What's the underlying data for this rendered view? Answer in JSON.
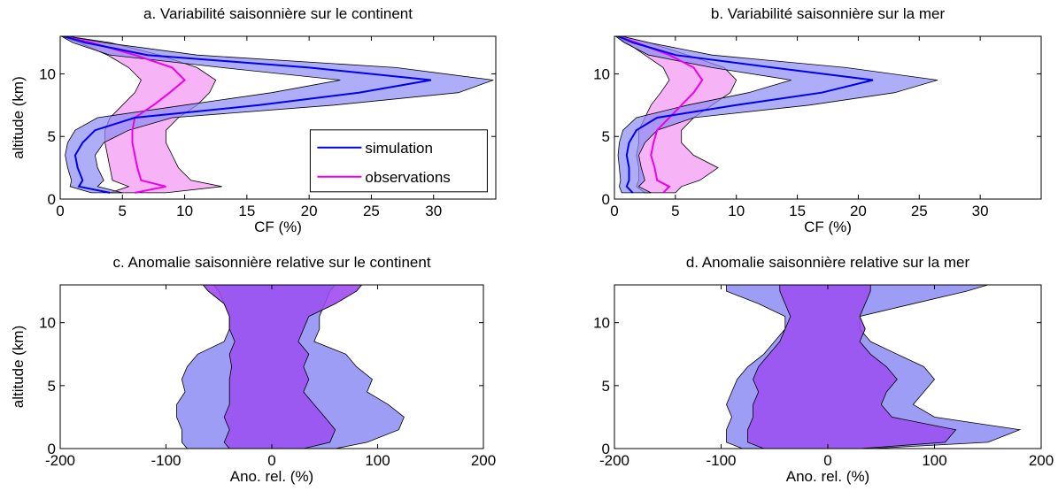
{
  "colors": {
    "simulation": "#0000ee",
    "simulation_fill": "#8c8cf5",
    "observations": "#ee00ee",
    "observations_fill": "#f5a6f5",
    "overlap_fill": "#9b50f0"
  },
  "chart_data": [
    {
      "id": "a",
      "type": "area",
      "title": "a. Variabilité saisonnière sur le continent",
      "xlabel": "CF (%)",
      "ylabel": "altitude (km)",
      "xlim": [
        0,
        35
      ],
      "ylim": [
        0,
        13
      ],
      "xticks": [
        0,
        5,
        10,
        15,
        20,
        25,
        30
      ],
      "yticks": [
        0,
        5,
        10
      ],
      "legend": {
        "position": "bottom-right",
        "entries": [
          "simulation",
          "observations"
        ]
      },
      "series": [
        {
          "name": "simulation",
          "role": "line",
          "color": "simulation",
          "y": [
            0.5,
            1.0,
            1.5,
            2.5,
            3.5,
            4.5,
            5.5,
            6.5,
            7.5,
            8.5,
            9.5,
            10.5,
            11.5,
            12.5,
            13
          ],
          "x": [
            4.0,
            1.5,
            1.8,
            1.4,
            1.2,
            1.8,
            2.8,
            6.0,
            16.0,
            24.0,
            29.8,
            20.0,
            7.0,
            2.0,
            0.3
          ],
          "band_low": [
            2.5,
            0.8,
            0.9,
            0.6,
            0.4,
            0.6,
            1.2,
            3.0,
            10.0,
            17.0,
            22.5,
            13.0,
            4.0,
            1.0,
            0.1
          ],
          "band_high": [
            5.0,
            3.0,
            3.5,
            3.0,
            2.8,
            3.5,
            5.5,
            9.0,
            22.0,
            32.0,
            34.8,
            27.0,
            11.0,
            3.5,
            0.6
          ]
        },
        {
          "name": "observations",
          "role": "line",
          "color": "observations",
          "y": [
            0.5,
            1.0,
            1.5,
            2.5,
            3.5,
            4.5,
            5.5,
            6.5,
            7.5,
            8.5,
            9.5,
            10.5,
            11.5,
            12.5,
            13
          ],
          "x": [
            6.0,
            8.5,
            6.5,
            6.2,
            6.0,
            5.8,
            5.8,
            6.0,
            7.5,
            8.8,
            10.0,
            9.0,
            6.0,
            2.5,
            0.3
          ],
          "band_low": [
            4.0,
            5.5,
            4.2,
            4.0,
            3.8,
            3.6,
            3.6,
            4.0,
            5.0,
            6.0,
            6.5,
            5.5,
            3.8,
            1.5,
            0.1
          ],
          "band_high": [
            8.5,
            13.0,
            10.5,
            9.5,
            9.0,
            8.5,
            8.5,
            9.5,
            11.0,
            12.0,
            12.5,
            11.0,
            8.0,
            4.0,
            0.6
          ]
        }
      ]
    },
    {
      "id": "b",
      "type": "area",
      "title": "b. Variabilité saisonnière sur la mer",
      "xlabel": "CF (%)",
      "ylabel": "",
      "xlim": [
        0,
        35
      ],
      "ylim": [
        0,
        13
      ],
      "xticks": [
        0,
        5,
        10,
        15,
        20,
        25,
        30
      ],
      "yticks": [
        0,
        5,
        10
      ],
      "series": [
        {
          "name": "simulation",
          "role": "line",
          "color": "simulation",
          "y": [
            0.5,
            1.0,
            1.5,
            2.5,
            3.5,
            4.5,
            5.5,
            6.5,
            7.5,
            8.5,
            9.5,
            10.5,
            11.5,
            12.5,
            13
          ],
          "x": [
            1.5,
            1.0,
            1.2,
            1.2,
            1.0,
            1.2,
            1.8,
            3.5,
            10.0,
            17.0,
            21.2,
            13.0,
            5.0,
            1.5,
            0.3
          ],
          "band_low": [
            0.6,
            0.4,
            0.5,
            0.4,
            0.3,
            0.4,
            0.7,
            1.8,
            6.0,
            11.0,
            14.5,
            8.0,
            2.8,
            0.8,
            0.1
          ],
          "band_high": [
            3.0,
            2.0,
            2.5,
            2.2,
            2.0,
            2.5,
            3.5,
            6.5,
            16.0,
            23.0,
            26.5,
            19.0,
            8.0,
            2.8,
            0.6
          ]
        },
        {
          "name": "observations",
          "role": "line",
          "color": "observations",
          "y": [
            0.5,
            1.0,
            1.5,
            2.5,
            3.5,
            4.5,
            5.5,
            6.5,
            7.5,
            8.5,
            9.5,
            10.5,
            11.5,
            12.5,
            13
          ],
          "x": [
            4.0,
            4.5,
            3.5,
            3.3,
            3.0,
            3.2,
            3.5,
            4.5,
            5.5,
            6.5,
            7.2,
            6.5,
            4.5,
            1.8,
            0.3
          ],
          "band_low": [
            2.5,
            1.8,
            2.0,
            2.0,
            1.8,
            2.0,
            2.0,
            2.5,
            3.0,
            3.8,
            4.5,
            4.0,
            2.5,
            1.0,
            0.1
          ],
          "band_high": [
            5.0,
            5.5,
            7.0,
            8.5,
            6.5,
            5.5,
            5.5,
            6.5,
            8.0,
            9.5,
            10.0,
            9.0,
            6.0,
            2.8,
            0.6
          ]
        }
      ]
    },
    {
      "id": "c",
      "type": "area",
      "title": "c. Anomalie saisonnière relative sur le continent",
      "xlabel": "Ano. rel. (%)",
      "ylabel": "altitude (km)",
      "xlim": [
        -200,
        200
      ],
      "ylim": [
        0,
        13
      ],
      "xticks": [
        -200,
        -100,
        0,
        100,
        200
      ],
      "yticks": [
        0,
        5,
        10
      ],
      "series": [
        {
          "name": "simulation",
          "role": "band",
          "color": "simulation",
          "y": [
            0,
            0.5,
            1.5,
            2.5,
            3.5,
            4.5,
            5.5,
            6.5,
            7.5,
            8.5,
            9.5,
            10.5,
            11.5,
            12.5,
            13
          ],
          "band_low": [
            -80,
            -85,
            -85,
            -90,
            -90,
            -82,
            -85,
            -80,
            -70,
            -45,
            -40,
            -40,
            -45,
            -50,
            -55
          ],
          "band_high": [
            60,
            90,
            120,
            125,
            110,
            90,
            95,
            80,
            70,
            40,
            45,
            45,
            50,
            55,
            60
          ]
        },
        {
          "name": "observations",
          "role": "band",
          "color": "observations",
          "y": [
            0,
            0.5,
            1.5,
            2.5,
            3.5,
            4.5,
            5.5,
            6.5,
            7.5,
            8.5,
            9.5,
            10.5,
            11.5,
            12.5,
            13
          ],
          "band_low": [
            -40,
            -45,
            -40,
            -45,
            -40,
            -40,
            -40,
            -38,
            -40,
            -35,
            -40,
            -40,
            -45,
            -60,
            -65
          ],
          "band_high": [
            30,
            55,
            60,
            50,
            40,
            30,
            35,
            30,
            35,
            25,
            30,
            35,
            60,
            80,
            85
          ]
        }
      ]
    },
    {
      "id": "d",
      "type": "area",
      "title": "d. Anomalie saisonnière relative sur la mer",
      "xlabel": "Ano. rel. (%)",
      "ylabel": "",
      "xlim": [
        -200,
        200
      ],
      "ylim": [
        0,
        13
      ],
      "xticks": [
        -200,
        -100,
        0,
        100,
        200
      ],
      "yticks": [
        0,
        5,
        10
      ],
      "series": [
        {
          "name": "simulation",
          "role": "band",
          "color": "simulation",
          "y": [
            0,
            0.5,
            1.5,
            2.5,
            3.5,
            4.5,
            5.5,
            6.5,
            7.5,
            8.5,
            9.5,
            10.5,
            11.5,
            12.5,
            13
          ],
          "band_low": [
            -80,
            -95,
            -95,
            -90,
            -95,
            -90,
            -85,
            -75,
            -60,
            -50,
            -40,
            -40,
            -65,
            -95,
            -95
          ],
          "band_high": [
            40,
            150,
            180,
            100,
            80,
            90,
            100,
            90,
            65,
            40,
            30,
            30,
            80,
            130,
            150
          ]
        },
        {
          "name": "observations",
          "role": "band",
          "color": "observations",
          "y": [
            0,
            0.5,
            1.5,
            2.5,
            3.5,
            4.5,
            5.5,
            6.5,
            7.5,
            8.5,
            9.5,
            10.5,
            11.5,
            12.5,
            13
          ],
          "band_low": [
            -60,
            -75,
            -75,
            -70,
            -70,
            -65,
            -70,
            -65,
            -55,
            -45,
            -40,
            -35,
            -40,
            -45,
            -45
          ],
          "band_high": [
            30,
            110,
            120,
            60,
            50,
            55,
            65,
            55,
            40,
            30,
            35,
            30,
            35,
            40,
            40
          ]
        }
      ]
    }
  ]
}
